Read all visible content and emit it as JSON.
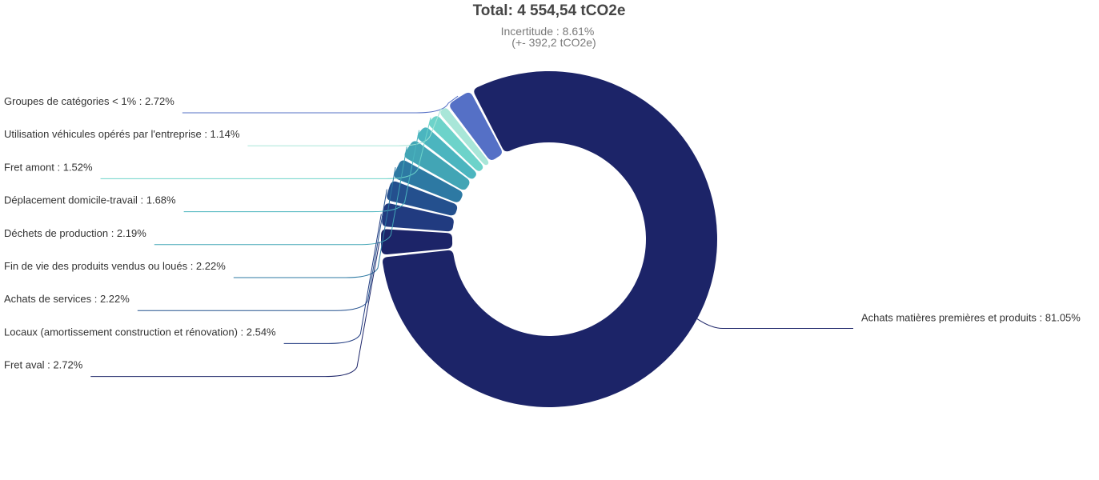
{
  "title": "Total: 4 554,54 tCO2e",
  "subtitle_line1": "Incertitude : 8.61%",
  "subtitle_line2": "(+- 392,2 tCO2e)",
  "chart_data": {
    "type": "pie",
    "donut": true,
    "title": "Total: 4 554,54 tCO2e",
    "subtitle": [
      "Incertitude : 8.61%",
      "(+- 392,2 tCO2e)"
    ],
    "slices": [
      {
        "name": "Achats matières premières et produits",
        "value": 81.05,
        "label": "Achats matières premières et produits : 81.05%",
        "color": "#1c2468"
      },
      {
        "name": "Fret aval",
        "value": 2.72,
        "label": "Fret aval : 2.72%",
        "color": "#1c2468"
      },
      {
        "name": "Locaux (amortissement construction et rénovation)",
        "value": 2.54,
        "label": "Locaux (amortissement construction et rénovation) : 2.54%",
        "color": "#213b80"
      },
      {
        "name": "Achats de services",
        "value": 2.22,
        "label": "Achats de services : 2.22%",
        "color": "#24508e"
      },
      {
        "name": "Fin de vie des produits vendus ou loués",
        "value": 2.22,
        "label": "Fin de vie des produits vendus ou loués : 2.22%",
        "color": "#2d79a3"
      },
      {
        "name": "Déchets de production",
        "value": 2.19,
        "label": "Déchets de production : 2.19%",
        "color": "#42a5b5"
      },
      {
        "name": "Déplacement domicile-travail",
        "value": 1.68,
        "label": "Déplacement domicile-travail : 1.68%",
        "color": "#4bb5bf"
      },
      {
        "name": "Fret amont",
        "value": 1.52,
        "label": "Fret amont : 1.52%",
        "color": "#6dd3ca"
      },
      {
        "name": "Utilisation véhicules opérés par l'entreprise",
        "value": 1.14,
        "label": "Utilisation véhicules opérés par l'entreprise : 1.14%",
        "color": "#a8e6d8"
      },
      {
        "name": "Groupes de catégories < 1%",
        "value": 2.72,
        "label": "Groupes de catégories < 1% : 2.72%",
        "color": "#5570c6"
      }
    ]
  }
}
